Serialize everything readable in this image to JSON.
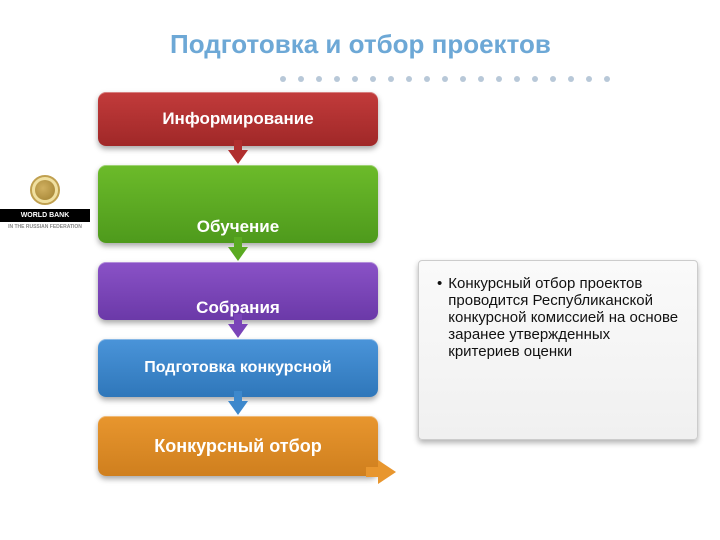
{
  "logo": {
    "line1": "WORLD BANK",
    "sub": "IN THE RUSSIAN FEDERATION"
  },
  "title": "Подготовка и отбор проектов",
  "flow": {
    "boxes": [
      {
        "label": "Информирование",
        "bg_top": "#c23b3b",
        "bg_bottom": "#a02828",
        "height": 54,
        "fontsize": 17,
        "arrow_color": "#b02e2e"
      },
      {
        "label": "Обучение",
        "bg_top": "#6cbb2a",
        "bg_bottom": "#4e9a1c",
        "height": 78,
        "fontsize": 17,
        "arrow_color": "#5aaa22"
      },
      {
        "label": "Собрания",
        "bg_top": "#8a52c7",
        "bg_bottom": "#6b39a8",
        "height": 58,
        "fontsize": 17,
        "arrow_color": "#7a44b8"
      },
      {
        "label": "Подготовка конкурсной",
        "bg_top": "#4a94d9",
        "bg_bottom": "#2f77ba",
        "height": 58,
        "fontsize": 16,
        "arrow_color": "#3d88cc"
      },
      {
        "label": "Конкурсный отбор",
        "bg_top": "#e8962e",
        "bg_bottom": "#cf7f1e",
        "height": 60,
        "fontsize": 18,
        "arrow_color": null
      }
    ],
    "arrow_gap": 18,
    "box_gap_after_arrow": 2
  },
  "info_text": "Конкурсный отбор проектов проводится Республиканской конкурсной комиссией на основе заранее утвержденных критериев оценки",
  "side_arrow_color": "#e8962e",
  "colors": {
    "title": "#6da8d6",
    "dots": "#b8c8d8",
    "panel_border": "#cccccc",
    "panel_bg": "#f4f4f4",
    "text": "#111111",
    "background": "#ffffff"
  },
  "dot_count": 19
}
